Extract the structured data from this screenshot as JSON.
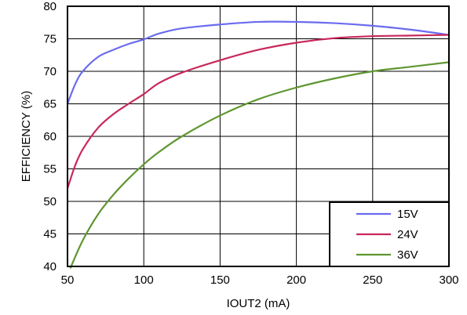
{
  "chart_data": {
    "type": "line",
    "title": "",
    "xlabel": "IOUT2 (mA)",
    "ylabel": "EFFICIENCY (%)",
    "xlim": [
      50,
      300
    ],
    "ylim": [
      40,
      80
    ],
    "x_ticks": [
      "50",
      "100",
      "150",
      "200",
      "250",
      "300"
    ],
    "y_ticks": [
      "40",
      "45",
      "50",
      "55",
      "60",
      "65",
      "70",
      "75",
      "80"
    ],
    "grid": true,
    "legend_position": "bottom-right",
    "series": [
      {
        "name": "15V",
        "color": "#6b6bf0",
        "x": [
          50,
          55,
          60,
          70,
          80,
          90,
          100,
          110,
          125,
          150,
          175,
          200,
          225,
          250,
          275,
          300
        ],
        "y": [
          65,
          68,
          70,
          72.2,
          73.3,
          74.2,
          74.9,
          75.8,
          76.6,
          77.2,
          77.6,
          77.6,
          77.4,
          77,
          76.4,
          75.6
        ]
      },
      {
        "name": "24V",
        "color": "#c8285a",
        "x": [
          50,
          55,
          60,
          70,
          80,
          90,
          100,
          110,
          125,
          150,
          175,
          200,
          225,
          250,
          275,
          300
        ],
        "y": [
          52,
          55.5,
          58,
          61.3,
          63.4,
          65,
          66.5,
          68.2,
          69.8,
          71.7,
          73.3,
          74.4,
          75.1,
          75.4,
          75.5,
          75.6
        ]
      },
      {
        "name": "36V",
        "color": "#5f9631",
        "x": [
          52,
          60,
          70,
          80,
          90,
          100,
          110,
          125,
          150,
          175,
          200,
          225,
          250,
          275,
          300
        ],
        "y": [
          39.8,
          44,
          48,
          51,
          53.5,
          55.7,
          57.6,
          60,
          63.2,
          65.7,
          67.5,
          68.9,
          70,
          70.7,
          71.4
        ]
      }
    ]
  }
}
